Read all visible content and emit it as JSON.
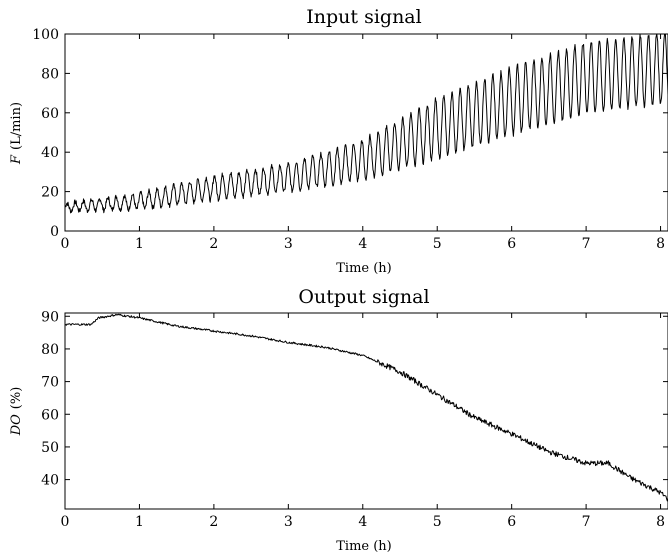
{
  "chart_data": [
    {
      "type": "line",
      "title": "Input signal",
      "xlabel": "Time (h)",
      "ylabel_var": "F",
      "ylabel_unit": "(L/min)",
      "xlim": [
        0,
        8.1
      ],
      "ylim": [
        0,
        100
      ],
      "xticks": [
        0,
        1,
        2,
        3,
        4,
        5,
        6,
        7,
        8
      ],
      "yticks": [
        0,
        20,
        40,
        60,
        80,
        100
      ],
      "grid": false,
      "signal": {
        "description_free": true,
        "baseline": [
          [
            0,
            12
          ],
          [
            1,
            15
          ],
          [
            2,
            22
          ],
          [
            3,
            27
          ],
          [
            4,
            36
          ],
          [
            5,
            52
          ],
          [
            6,
            66
          ],
          [
            7,
            78
          ],
          [
            8.1,
            83
          ]
        ],
        "amplitude": [
          [
            0,
            2
          ],
          [
            1,
            4
          ],
          [
            2,
            6
          ],
          [
            3,
            7
          ],
          [
            4,
            10
          ],
          [
            5,
            15
          ],
          [
            6,
            17
          ],
          [
            7,
            18
          ],
          [
            8.1,
            18
          ]
        ],
        "period_h": 0.11
      }
    },
    {
      "type": "line",
      "title": "Output signal",
      "xlabel": "Time (h)",
      "ylabel_var": "DO",
      "ylabel_unit": "(%)",
      "xlim": [
        0,
        8.1
      ],
      "ylim": [
        31,
        91
      ],
      "xticks": [
        0,
        1,
        2,
        3,
        4,
        5,
        6,
        7,
        8
      ],
      "yticks": [
        40,
        50,
        60,
        70,
        80,
        90
      ],
      "grid": false,
      "points": [
        [
          0,
          87.5
        ],
        [
          0.35,
          87.5
        ],
        [
          0.45,
          89.5
        ],
        [
          0.7,
          90.5
        ],
        [
          1,
          89.5
        ],
        [
          1.5,
          87
        ],
        [
          2,
          85.5
        ],
        [
          2.5,
          84
        ],
        [
          3,
          82
        ],
        [
          3.5,
          80.5
        ],
        [
          4,
          78
        ],
        [
          4.5,
          73
        ],
        [
          5,
          66
        ],
        [
          5.5,
          59
        ],
        [
          6,
          54
        ],
        [
          6.5,
          48.5
        ],
        [
          7,
          45
        ],
        [
          7.3,
          45
        ],
        [
          7.6,
          40.5
        ],
        [
          8,
          36
        ],
        [
          8.1,
          34
        ]
      ]
    }
  ]
}
